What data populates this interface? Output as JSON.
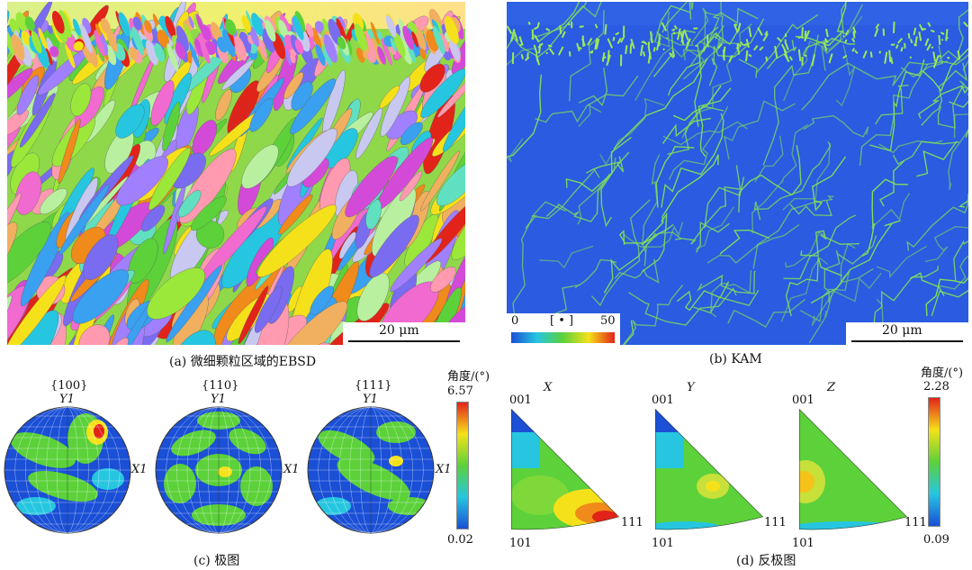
{
  "figure": {
    "panel_a": {
      "caption": "(a) 微细颗粒区域的EBSD",
      "scale_bar": "20  μm"
    },
    "panel_b": {
      "caption": "(b) KAM",
      "scale_bar": "20  μm",
      "colorbar": {
        "min": "0",
        "unit": "[ • ]",
        "max": "50"
      }
    },
    "panel_c": {
      "caption": "(c) 极图",
      "poles": [
        {
          "family": "{100}",
          "y_label": "Y1",
          "x_label": "X1"
        },
        {
          "family": "{110}",
          "y_label": "Y1",
          "x_label": "X1"
        },
        {
          "family": "{111}",
          "y_label": "Y1",
          "x_label": "X1"
        }
      ],
      "colorbar": {
        "title": "角度/(°)",
        "max": "6.57",
        "min": "0.02"
      }
    },
    "panel_d": {
      "caption": "(d) 反极图",
      "triangles": [
        {
          "axis": "X",
          "v001": "001",
          "v101": "101",
          "v111": "111"
        },
        {
          "axis": "Y",
          "v001": "001",
          "v101": "101",
          "v111": "111"
        },
        {
          "axis": "Z",
          "v001": "001",
          "v101": "101",
          "v111": "111"
        }
      ],
      "colorbar": {
        "title": "角度/(°)",
        "max": "2.28",
        "min": "0.09"
      }
    }
  },
  "colors": {
    "jet_red": "#e2231a",
    "jet_yellow": "#f5e11a",
    "jet_green": "#5cd13a",
    "jet_cyan": "#26c6e0",
    "jet_blue": "#1a4fd6",
    "kam_background": "#2a5be0",
    "kam_boundary": "#7fe05a"
  }
}
